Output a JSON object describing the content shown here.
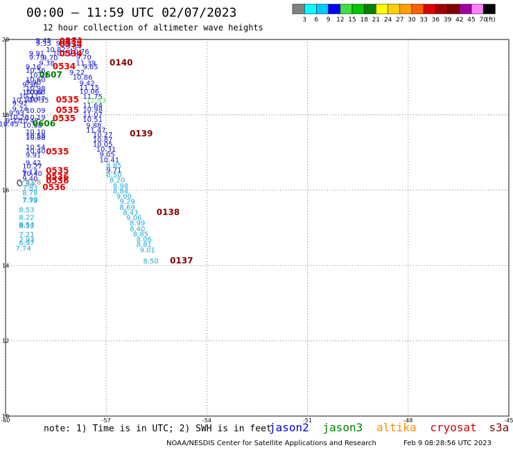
{
  "header": {
    "title": "00:00 – 11:59 UTC 02/07/2023",
    "subtitle": "12 hour collection of altimeter wave heights"
  },
  "colorbar": {
    "labels": [
      "3",
      "6",
      "9",
      "12",
      "15",
      "18",
      "21",
      "24",
      "27",
      "30",
      "33",
      "36",
      "39",
      "42",
      "45",
      "70"
    ],
    "unit": "(ft)",
    "colors": [
      "#808080",
      "#00ffff",
      "#00c8ff",
      "#0000ff",
      "#40e040",
      "#00c800",
      "#008000",
      "#ffff00",
      "#ffd000",
      "#ffa000",
      "#ff6000",
      "#e00000",
      "#a00000",
      "#800000",
      "#a000a0",
      "#ff80ff",
      "#000000"
    ]
  },
  "axes": {
    "lat_ticks": [
      "20",
      "18",
      "16",
      "14",
      "12",
      "10"
    ],
    "lon_ticks": [
      "-60",
      "-57",
      "-54",
      "-51",
      "-48",
      "-45"
    ]
  },
  "footer": {
    "note": "note: 1) Time is in UTC; 2) SWH is in feet",
    "satellites": [
      {
        "name": "jason2",
        "color": "#0000cc"
      },
      {
        "name": "jason3",
        "color": "#008000"
      },
      {
        "name": "altika",
        "color": "#ff8c00"
      },
      {
        "name": "cryosat",
        "color": "#cc0000"
      },
      {
        "name": "s3a",
        "color": "#800000"
      }
    ],
    "credit": "NOAA/NESDIS Center for Satellite Applications and Research",
    "generated": "Feb  9 08:28:56 UTC 2023"
  },
  "palette": {
    "jason2": "#1010c8",
    "cyan": "#20a8d8",
    "gray": "#888888",
    "light_green": "#60e060",
    "time_red": "#e00000",
    "time_green": "#008000",
    "time_darkred": "#800000"
  },
  "map_data": {
    "lon_range": [
      -60,
      -45
    ],
    "lat_range": [
      10,
      20
    ],
    "track_a_jason2": [
      {
        "lon": -59.1,
        "lat": 19.91,
        "v": "9.45"
      },
      {
        "lon": -59.1,
        "lat": 19.83,
        "v": "9.35"
      },
      {
        "lon": -58.2,
        "lat": 19.93,
        "v": "9.73"
      },
      {
        "lon": -58.5,
        "lat": 19.83,
        "v": "9.95"
      },
      {
        "lon": -58.2,
        "lat": 19.75,
        "v": "9.84"
      },
      {
        "lon": -58.8,
        "lat": 19.67,
        "v": "10.82"
      },
      {
        "lon": -58.1,
        "lat": 19.61,
        "v": "10.76"
      },
      {
        "lon": -59.3,
        "lat": 19.57,
        "v": "9.91"
      },
      {
        "lon": -58.6,
        "lat": 19.57,
        "v": "10.19"
      },
      {
        "lon": -59.3,
        "lat": 19.47,
        "v": "9.79"
      },
      {
        "lon": -58.9,
        "lat": 19.45,
        "v": "9.70"
      },
      {
        "lon": -57.9,
        "lat": 19.47,
        "v": "9.70"
      },
      {
        "lon": -59.0,
        "lat": 19.31,
        "v": "9.38"
      },
      {
        "lon": -57.9,
        "lat": 19.31,
        "v": "11.39"
      },
      {
        "lon": -59.4,
        "lat": 19.21,
        "v": "9.16"
      },
      {
        "lon": -57.7,
        "lat": 19.21,
        "v": "9.65"
      },
      {
        "lon": -59.4,
        "lat": 19.12,
        "v": "10.56"
      },
      {
        "lon": -58.1,
        "lat": 19.06,
        "v": "9.22"
      },
      {
        "lon": -59.3,
        "lat": 18.99,
        "v": "10.22"
      },
      {
        "lon": -58.0,
        "lat": 18.93,
        "v": "10.86"
      },
      {
        "lon": -59.4,
        "lat": 18.87,
        "v": "10.60"
      },
      {
        "lon": -59.4,
        "lat": 18.8,
        "v": "9.90"
      },
      {
        "lon": -57.8,
        "lat": 18.78,
        "v": "9.42"
      },
      {
        "lon": -59.5,
        "lat": 18.73,
        "v": "9.30"
      },
      {
        "lon": -57.8,
        "lat": 18.66,
        "v": "11.15"
      },
      {
        "lon": -59.4,
        "lat": 18.64,
        "v": "10.98"
      },
      {
        "lon": -59.5,
        "lat": 18.54,
        "v": "10.08"
      },
      {
        "lon": -59.4,
        "lat": 18.54,
        "v": "10.68"
      },
      {
        "lon": -57.8,
        "lat": 18.56,
        "v": "10.06"
      },
      {
        "lon": -59.6,
        "lat": 18.44,
        "v": "10.11"
      },
      {
        "lon": -59.4,
        "lat": 18.36,
        "v": "10.47"
      },
      {
        "lon": -57.7,
        "lat": 18.42,
        "v": "11.75"
      },
      {
        "lon": -59.8,
        "lat": 18.33,
        "v": "10.12"
      },
      {
        "lon": -59.3,
        "lat": 18.33,
        "v": "10.35"
      },
      {
        "lon": -59.8,
        "lat": 18.24,
        "v": "9.92"
      },
      {
        "lon": -57.7,
        "lat": 18.19,
        "v": "11.64"
      },
      {
        "lon": -59.8,
        "lat": 18.09,
        "v": "9.74"
      },
      {
        "lon": -59.4,
        "lat": 18.05,
        "v": "10.09"
      },
      {
        "lon": -57.7,
        "lat": 18.08,
        "v": "10.98"
      },
      {
        "lon": -59.9,
        "lat": 17.99,
        "v": "9.93"
      },
      {
        "lon": -57.7,
        "lat": 17.94,
        "v": "11.07"
      },
      {
        "lon": -59.9,
        "lat": 17.87,
        "v": "10.26"
      },
      {
        "lon": -59.4,
        "lat": 17.87,
        "v": "10.19"
      },
      {
        "lon": -60.0,
        "lat": 17.78,
        "v": "9.77"
      },
      {
        "lon": -59.6,
        "lat": 17.78,
        "v": "10.47"
      },
      {
        "lon": -57.7,
        "lat": 17.81,
        "v": "10.51"
      },
      {
        "lon": -60.2,
        "lat": 17.69,
        "v": "10.45"
      },
      {
        "lon": -59.5,
        "lat": 17.66,
        "v": "10.58"
      },
      {
        "lon": -57.6,
        "lat": 17.66,
        "v": "9.88"
      },
      {
        "lon": -57.6,
        "lat": 17.53,
        "v": "11.47"
      },
      {
        "lon": -59.4,
        "lat": 17.48,
        "v": "10.10"
      },
      {
        "lon": -57.4,
        "lat": 17.41,
        "v": "10.27"
      },
      {
        "lon": -59.4,
        "lat": 17.38,
        "v": "10.58"
      },
      {
        "lon": -59.4,
        "lat": 17.33,
        "v": "10.88"
      },
      {
        "lon": -57.4,
        "lat": 17.28,
        "v": "10.87"
      },
      {
        "lon": -57.4,
        "lat": 17.15,
        "v": "10.05"
      },
      {
        "lon": -59.4,
        "lat": 17.08,
        "v": "10.54"
      },
      {
        "lon": -59.4,
        "lat": 16.98,
        "v": "10.40"
      },
      {
        "lon": -57.3,
        "lat": 17.02,
        "v": "10.31"
      },
      {
        "lon": -59.4,
        "lat": 16.87,
        "v": "9.91"
      },
      {
        "lon": -57.2,
        "lat": 16.88,
        "v": "9.05"
      },
      {
        "lon": -57.2,
        "lat": 16.74,
        "v": "10.41"
      },
      {
        "lon": -59.4,
        "lat": 16.66,
        "v": "9.42"
      },
      {
        "lon": -59.5,
        "lat": 16.57,
        "v": "10.27"
      },
      {
        "lon": -57.0,
        "lat": 16.47,
        "v": "9.71"
      },
      {
        "lon": -59.5,
        "lat": 16.42,
        "v": "9.17"
      },
      {
        "lon": -59.5,
        "lat": 16.38,
        "v": "10.40"
      },
      {
        "lon": -59.5,
        "lat": 16.24,
        "v": "9.40"
      }
    ],
    "track_a_cyan": [
      {
        "lon": -57.0,
        "lat": 16.59,
        "v": "8.85"
      },
      {
        "lon": -57.0,
        "lat": 16.34,
        "v": "8.50"
      },
      {
        "lon": -56.9,
        "lat": 16.2,
        "v": "8.20"
      },
      {
        "lon": -56.8,
        "lat": 16.05,
        "v": "8.98"
      },
      {
        "lon": -56.8,
        "lat": 15.91,
        "v": "8.84"
      },
      {
        "lon": -56.7,
        "lat": 15.77,
        "v": "9.00"
      },
      {
        "lon": -56.6,
        "lat": 15.63,
        "v": "9.29"
      },
      {
        "lon": -56.6,
        "lat": 15.48,
        "v": "8.69"
      },
      {
        "lon": -56.5,
        "lat": 15.34,
        "v": "8.43"
      },
      {
        "lon": -56.4,
        "lat": 15.2,
        "v": "9.06"
      },
      {
        "lon": -56.3,
        "lat": 15.06,
        "v": "8.99"
      },
      {
        "lon": -56.3,
        "lat": 14.91,
        "v": "8.40"
      },
      {
        "lon": -56.2,
        "lat": 14.77,
        "v": "8.85"
      },
      {
        "lon": -56.1,
        "lat": 14.63,
        "v": "8.06"
      },
      {
        "lon": -56.1,
        "lat": 14.49,
        "v": "8.81"
      },
      {
        "lon": -56.0,
        "lat": 14.35,
        "v": "9.01"
      },
      {
        "lon": -55.9,
        "lat": 14.05,
        "v": "8.50"
      },
      {
        "lon": -59.6,
        "lat": 16.1,
        "v": "7.84"
      },
      {
        "lon": -59.5,
        "lat": 15.99,
        "v": "7.83"
      },
      {
        "lon": -59.5,
        "lat": 15.86,
        "v": "8.78"
      },
      {
        "lon": -59.5,
        "lat": 15.69,
        "v": "7.99"
      },
      {
        "lon": -59.5,
        "lat": 15.66,
        "v": "7.78"
      },
      {
        "lon": -59.6,
        "lat": 15.41,
        "v": "8.53"
      },
      {
        "lon": -59.6,
        "lat": 15.21,
        "v": "8.22"
      },
      {
        "lon": -59.6,
        "lat": 15.02,
        "v": "8.54"
      },
      {
        "lon": -59.6,
        "lat": 14.99,
        "v": "8.52"
      },
      {
        "lon": -59.6,
        "lat": 14.76,
        "v": "7.21"
      },
      {
        "lon": -59.6,
        "lat": 14.62,
        "v": "7.93"
      },
      {
        "lon": -59.6,
        "lat": 14.54,
        "v": "6.97"
      },
      {
        "lon": -59.7,
        "lat": 14.39,
        "v": "7.74"
      }
    ],
    "gray_values": [
      {
        "lon": -59.4,
        "lat": 16.15,
        "v": "8.28"
      }
    ],
    "light_green_values": [
      {
        "lon": -57.6,
        "lat": 18.32,
        "v": "12.83"
      }
    ],
    "time_labels": [
      {
        "lon": -58.4,
        "lat": 19.88,
        "v": "0534",
        "color": "#e00000"
      },
      {
        "lon": -58.4,
        "lat": 19.8,
        "v": "0534",
        "color": "#e00000"
      },
      {
        "lon": -58.4,
        "lat": 19.55,
        "v": "0534",
        "color": "#e00000"
      },
      {
        "lon": -58.6,
        "lat": 19.21,
        "v": "0534",
        "color": "#e00000"
      },
      {
        "lon": -56.9,
        "lat": 19.31,
        "v": "0140",
        "color": "#800000"
      },
      {
        "lon": -59.0,
        "lat": 18.99,
        "v": "0607",
        "color": "#008000"
      },
      {
        "lon": -58.5,
        "lat": 18.33,
        "v": "0535",
        "color": "#e00000"
      },
      {
        "lon": -58.5,
        "lat": 18.05,
        "v": "0535",
        "color": "#e00000"
      },
      {
        "lon": -58.6,
        "lat": 17.83,
        "v": "0535",
        "color": "#e00000"
      },
      {
        "lon": -59.2,
        "lat": 17.69,
        "v": "0606",
        "color": "#008000"
      },
      {
        "lon": -56.3,
        "lat": 17.43,
        "v": "0139",
        "color": "#800000"
      },
      {
        "lon": -58.8,
        "lat": 16.95,
        "v": "0535",
        "color": "#e00000"
      },
      {
        "lon": -58.8,
        "lat": 16.44,
        "v": "0535",
        "color": "#e00000"
      },
      {
        "lon": -58.8,
        "lat": 16.28,
        "v": "0536",
        "color": "#e00000"
      },
      {
        "lon": -58.8,
        "lat": 16.18,
        "v": "0536",
        "color": "#e00000"
      },
      {
        "lon": -58.9,
        "lat": 16.0,
        "v": "0536",
        "color": "#e00000"
      },
      {
        "lon": -55.5,
        "lat": 15.34,
        "v": "0138",
        "color": "#800000"
      },
      {
        "lon": -55.1,
        "lat": 14.05,
        "v": "0137",
        "color": "#800000"
      }
    ]
  }
}
